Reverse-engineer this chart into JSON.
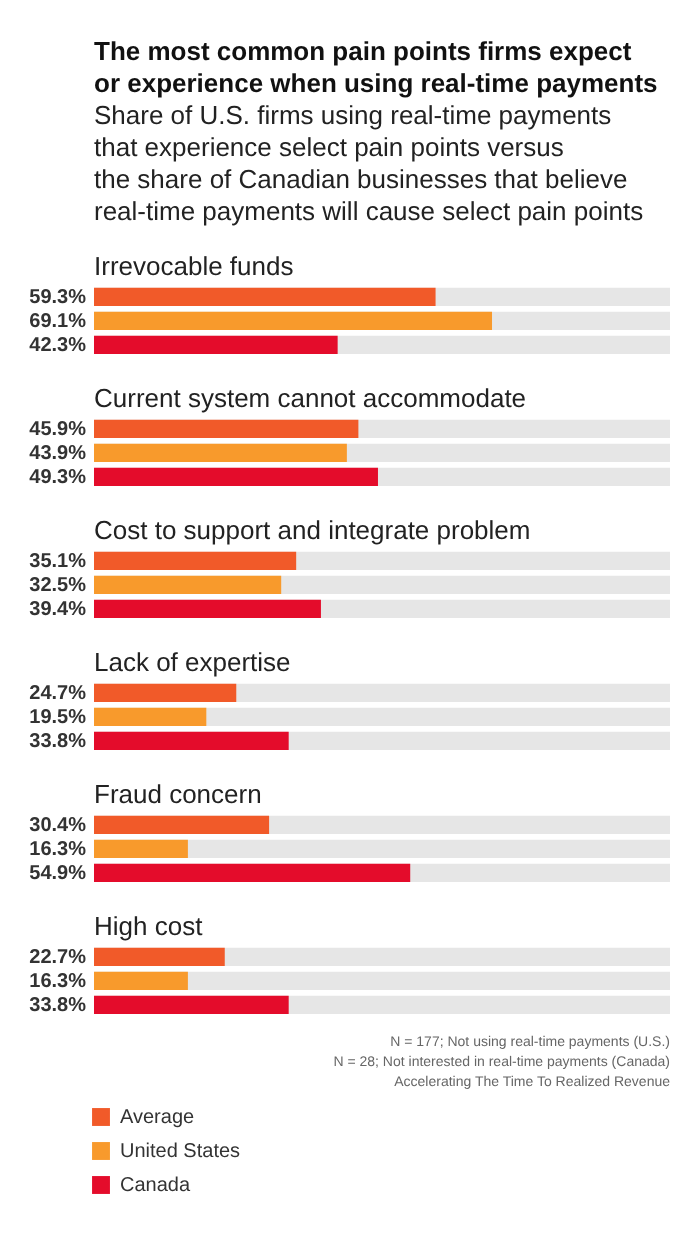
{
  "chart_data": {
    "type": "bar",
    "orientation": "horizontal",
    "title": [
      "The most common pain points firms expect",
      "or experience when using real-time payments"
    ],
    "subtitle": [
      "Share of U.S. firms using real-time payments",
      "that experience select pain points versus",
      "the share of Canadian businesses that believe",
      "real-time payments will cause select pain points"
    ],
    "categories": [
      "Irrevocable funds",
      "Current system cannot accommodate",
      "Cost to support and integrate problem",
      "Lack of expertise",
      "Fraud concern",
      "High cost"
    ],
    "series": [
      {
        "name": "Average",
        "color": "#f15a29",
        "values": [
          59.3,
          45.9,
          35.1,
          24.7,
          30.4,
          22.7
        ],
        "value_labels": [
          "59.3%",
          "45.9%",
          "35.1%",
          "24.7%",
          "30.4%",
          "22.7%"
        ]
      },
      {
        "name": "United States",
        "color": "#f89a2c",
        "values": [
          69.1,
          43.9,
          32.5,
          19.5,
          16.3,
          16.3
        ],
        "value_labels": [
          "69.1%",
          "43.9%",
          "32.5%",
          "19.5%",
          "16.3%",
          "16.3%"
        ]
      },
      {
        "name": "Canada",
        "color": "#e40c2b",
        "values": [
          42.3,
          49.3,
          39.4,
          33.8,
          54.9,
          33.8
        ],
        "value_labels": [
          "42.3%",
          "49.3%",
          "39.4%",
          "33.8%",
          "54.9%",
          "33.8%"
        ]
      }
    ],
    "xlim": [
      0,
      100
    ],
    "tick_labels": false,
    "legend": "bottom left",
    "annotations": [
      "N = 177; Not using real-time payments (U.S.)",
      "N = 28; Not interested in real-time payments (Canada)",
      "Accelerating The Time To Realized Revenue"
    ]
  }
}
